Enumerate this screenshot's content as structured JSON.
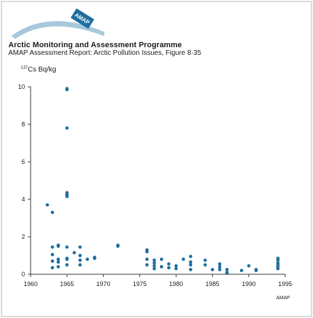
{
  "header": {
    "logo_text": "AMAP",
    "title": "Arctic Monitoring and Assessment Programme",
    "subtitle": "AMAP Assessment Report: Arctic Pollution Issues, Figure 8·35"
  },
  "footer": {
    "credit": "AMAP"
  },
  "colors": {
    "points": "#1f6ea0",
    "logo_arc": "#a8c8dc",
    "axis": "#333333"
  },
  "chart_data": {
    "type": "scatter",
    "title": "",
    "ylabel_sup": "137",
    "ylabel_main": "Cs Bq/kg",
    "xlabel": "",
    "xlim": [
      1960,
      1995
    ],
    "ylim": [
      0,
      10
    ],
    "xticks": [
      1960,
      1965,
      1970,
      1975,
      1980,
      1985,
      1990,
      1995
    ],
    "yticks": [
      0,
      2,
      4,
      6,
      8,
      10
    ],
    "grid": false,
    "legend": "none",
    "series": [
      {
        "points": [
          [
            1962.3,
            3.7
          ],
          [
            1963.0,
            3.3
          ],
          [
            1963.0,
            1.45
          ],
          [
            1963.0,
            1.05
          ],
          [
            1963.0,
            0.7
          ],
          [
            1963.0,
            0.35
          ],
          [
            1963.8,
            1.55
          ],
          [
            1963.8,
            1.5
          ],
          [
            1963.8,
            0.8
          ],
          [
            1963.8,
            0.65
          ],
          [
            1963.8,
            0.4
          ],
          [
            1965.0,
            9.9
          ],
          [
            1965.0,
            9.85
          ],
          [
            1965.0,
            7.8
          ],
          [
            1965.0,
            4.35
          ],
          [
            1965.0,
            4.25
          ],
          [
            1965.0,
            4.15
          ],
          [
            1965.0,
            1.45
          ],
          [
            1965.0,
            0.85
          ],
          [
            1965.0,
            0.8
          ],
          [
            1965.0,
            0.5
          ],
          [
            1966.0,
            1.15
          ],
          [
            1966.8,
            1.45
          ],
          [
            1966.8,
            1.0
          ],
          [
            1966.8,
            0.75
          ],
          [
            1966.8,
            0.5
          ],
          [
            1967.8,
            0.8
          ],
          [
            1968.8,
            0.85
          ],
          [
            1968.8,
            0.9
          ],
          [
            1972.0,
            1.55
          ],
          [
            1972.0,
            1.5
          ],
          [
            1976.0,
            1.3
          ],
          [
            1976.0,
            1.2
          ],
          [
            1976.0,
            0.8
          ],
          [
            1976.0,
            0.5
          ],
          [
            1977.0,
            0.75
          ],
          [
            1977.0,
            0.6
          ],
          [
            1977.0,
            0.45
          ],
          [
            1977.0,
            0.3
          ],
          [
            1978.0,
            0.8
          ],
          [
            1978.0,
            0.4
          ],
          [
            1979.0,
            0.55
          ],
          [
            1979.0,
            0.35
          ],
          [
            1980.0,
            0.45
          ],
          [
            1980.0,
            0.3
          ],
          [
            1981.0,
            0.8
          ],
          [
            1982.0,
            0.95
          ],
          [
            1982.0,
            0.65
          ],
          [
            1982.0,
            0.5
          ],
          [
            1982.0,
            0.25
          ],
          [
            1984.0,
            0.75
          ],
          [
            1984.0,
            0.5
          ],
          [
            1985.0,
            0.25
          ],
          [
            1986.0,
            0.55
          ],
          [
            1986.0,
            0.4
          ],
          [
            1986.0,
            0.25
          ],
          [
            1987.0,
            0.25
          ],
          [
            1987.0,
            0.1
          ],
          [
            1987.0,
            0.05
          ],
          [
            1989.0,
            0.2
          ],
          [
            1990.0,
            0.45
          ],
          [
            1991.0,
            0.25
          ],
          [
            1991.0,
            0.2
          ],
          [
            1994.0,
            0.85
          ],
          [
            1994.0,
            0.75
          ],
          [
            1994.0,
            0.6
          ],
          [
            1994.0,
            0.5
          ],
          [
            1994.0,
            0.4
          ],
          [
            1994.0,
            0.3
          ]
        ]
      }
    ]
  }
}
